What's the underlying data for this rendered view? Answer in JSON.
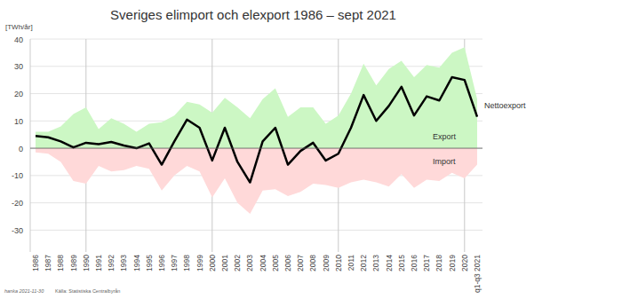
{
  "chart_data": {
    "type": "area",
    "title": "Sveriges elimport och elexport 1986 – sept 2021",
    "y_label": "[TWh/år]",
    "footer_author": "hanka 2021-11-30",
    "footer_source": "Källa: Statistiska Centralbyrån",
    "categories": [
      "1986",
      "1987",
      "1988",
      "1989",
      "1990",
      "1991",
      "1992",
      "1993",
      "1994",
      "1995",
      "1996",
      "1997",
      "1998",
      "1999",
      "2000",
      "2001",
      "2002",
      "2003",
      "2004",
      "2005",
      "2006",
      "2007",
      "2008",
      "2009",
      "2010",
      "2011",
      "2012",
      "2013",
      "2014",
      "2015",
      "2016",
      "2017",
      "2018",
      "2019",
      "2020",
      "q1-q3 2021"
    ],
    "series": [
      {
        "name": "Export",
        "type": "area",
        "color": "#ccf7c4",
        "values": [
          6,
          6,
          8,
          12.5,
          15,
          7,
          11,
          9,
          6,
          9,
          9.5,
          12,
          17,
          16,
          13,
          18.5,
          15,
          11,
          18,
          22,
          11.5,
          15,
          15,
          9,
          12,
          20,
          31,
          23,
          29,
          32,
          26,
          30.5,
          29.5,
          35,
          37,
          18
        ]
      },
      {
        "name": "Import",
        "type": "area",
        "color": "#ffd9d9",
        "values": [
          -1.5,
          -2,
          -5,
          -12,
          -13,
          -6.5,
          -8.5,
          -8,
          -6.5,
          -7.5,
          -15.5,
          -10,
          -6.5,
          -8.5,
          -18,
          -11,
          -20,
          -24,
          -15.5,
          -15,
          -17.5,
          -16,
          -13,
          -13.5,
          -14.5,
          -12.5,
          -11.5,
          -12.5,
          -14,
          -9.5,
          -14.5,
          -11.5,
          -12,
          -9,
          -11,
          -6
        ]
      },
      {
        "name": "Nettoexport",
        "type": "line",
        "color": "#000000",
        "values": [
          4.5,
          4,
          2.5,
          0.3,
          2,
          1.5,
          2.3,
          1,
          0,
          1.8,
          -6,
          2.5,
          10.5,
          7.5,
          -4.5,
          7.5,
          -5,
          -12.5,
          2.5,
          7.5,
          -6,
          -1,
          2,
          -4.5,
          -2,
          7.5,
          19.5,
          10,
          15.5,
          22.5,
          12,
          19,
          17.5,
          26,
          25,
          11.5
        ]
      }
    ],
    "ylim": [
      -38,
      40
    ],
    "yticks": [
      -30,
      -20,
      -10,
      0,
      10,
      20,
      30,
      40
    ],
    "grid": true
  }
}
